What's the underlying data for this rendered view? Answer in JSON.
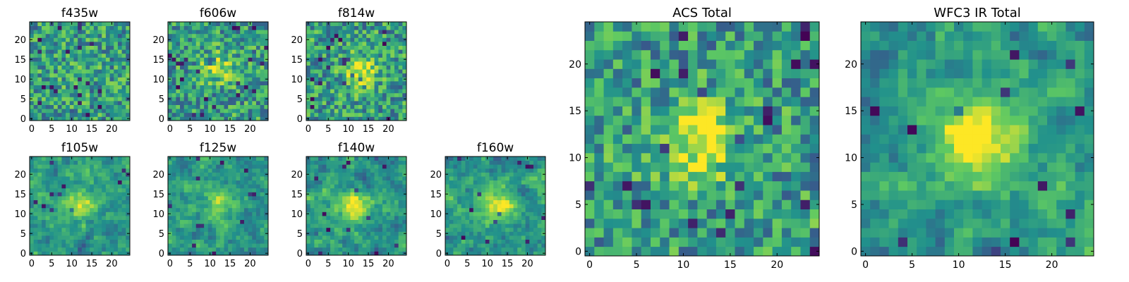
{
  "figure": {
    "colormap": "viridis",
    "colormap_stops": [
      "#440154",
      "#3b528b",
      "#21918c",
      "#5ec962",
      "#fde725"
    ],
    "frame_color": "#000000",
    "background": "#ffffff"
  },
  "chart_data": [
    {
      "type": "heatmap",
      "title": "f435w",
      "grid_size": 25,
      "xlim": [
        0,
        24
      ],
      "ylim": [
        0,
        24
      ],
      "xticks": [
        "0",
        "5",
        "10",
        "15",
        "20"
      ],
      "yticks": [
        "0",
        "5",
        "10",
        "15",
        "20"
      ],
      "colormap": "viridis",
      "seed": 11,
      "texture": "noisy",
      "source_peak": [
        12,
        12,
        0.08
      ]
    },
    {
      "type": "heatmap",
      "title": "f606w",
      "grid_size": 25,
      "xlim": [
        0,
        24
      ],
      "ylim": [
        0,
        24
      ],
      "xticks": [
        "0",
        "5",
        "10",
        "15",
        "20"
      ],
      "yticks": [
        "0",
        "5",
        "10",
        "15",
        "20"
      ],
      "colormap": "viridis",
      "seed": 23,
      "texture": "noisy",
      "source_peak": [
        12,
        13,
        0.35
      ]
    },
    {
      "type": "heatmap",
      "title": "f814w",
      "grid_size": 25,
      "xlim": [
        0,
        24
      ],
      "ylim": [
        0,
        24
      ],
      "xticks": [
        "0",
        "5",
        "10",
        "15",
        "20"
      ],
      "yticks": [
        "0",
        "5",
        "10",
        "15",
        "20"
      ],
      "colormap": "viridis",
      "seed": 37,
      "texture": "noisy",
      "source_peak": [
        13,
        12,
        0.45
      ]
    },
    {
      "type": "heatmap",
      "title": "f105w",
      "grid_size": 25,
      "xlim": [
        0,
        24
      ],
      "ylim": [
        0,
        24
      ],
      "xticks": [
        "0",
        "5",
        "10",
        "15",
        "20"
      ],
      "yticks": [
        "0",
        "5",
        "10",
        "15",
        "20"
      ],
      "colormap": "viridis",
      "seed": 41,
      "texture": "smooth",
      "source_peak": [
        12,
        13,
        0.4
      ]
    },
    {
      "type": "heatmap",
      "title": "f125w",
      "grid_size": 25,
      "xlim": [
        0,
        24
      ],
      "ylim": [
        0,
        24
      ],
      "xticks": [
        "0",
        "5",
        "10",
        "15",
        "20"
      ],
      "yticks": [
        "0",
        "5",
        "10",
        "15",
        "20"
      ],
      "colormap": "viridis",
      "seed": 53,
      "texture": "smooth",
      "source_peak": [
        12,
        12,
        0.3
      ]
    },
    {
      "type": "heatmap",
      "title": "f140w",
      "grid_size": 25,
      "xlim": [
        0,
        24
      ],
      "ylim": [
        0,
        24
      ],
      "xticks": [
        "0",
        "5",
        "10",
        "15",
        "20"
      ],
      "yticks": [
        "0",
        "5",
        "10",
        "15",
        "20"
      ],
      "colormap": "viridis",
      "seed": 67,
      "texture": "smooth",
      "source_peak": [
        11,
        12,
        0.45
      ]
    },
    {
      "type": "heatmap",
      "title": "f160w",
      "grid_size": 25,
      "xlim": [
        0,
        24
      ],
      "ylim": [
        0,
        24
      ],
      "xticks": [
        "0",
        "5",
        "10",
        "15",
        "20"
      ],
      "yticks": [
        "0",
        "5",
        "10",
        "15",
        "20"
      ],
      "colormap": "viridis",
      "seed": 71,
      "texture": "smooth",
      "source_peak": [
        13,
        12,
        0.45
      ]
    },
    {
      "type": "heatmap",
      "title": "ACS Total",
      "grid_size": 25,
      "xlim": [
        0,
        24
      ],
      "ylim": [
        0,
        24
      ],
      "xticks": [
        "0",
        "5",
        "10",
        "15",
        "20"
      ],
      "yticks": [
        "0",
        "5",
        "10",
        "15",
        "20"
      ],
      "colormap": "viridis",
      "seed": 89,
      "texture": "noisy",
      "source_peak": [
        12,
        12,
        0.55
      ]
    },
    {
      "type": "heatmap",
      "title": "WFC3 IR Total",
      "grid_size": 25,
      "xlim": [
        0,
        24
      ],
      "ylim": [
        0,
        24
      ],
      "xticks": [
        "0",
        "5",
        "10",
        "15",
        "20"
      ],
      "yticks": [
        "0",
        "5",
        "10",
        "15",
        "20"
      ],
      "colormap": "viridis",
      "seed": 97,
      "texture": "smooth",
      "source_peak": [
        12,
        12,
        0.6
      ]
    }
  ]
}
